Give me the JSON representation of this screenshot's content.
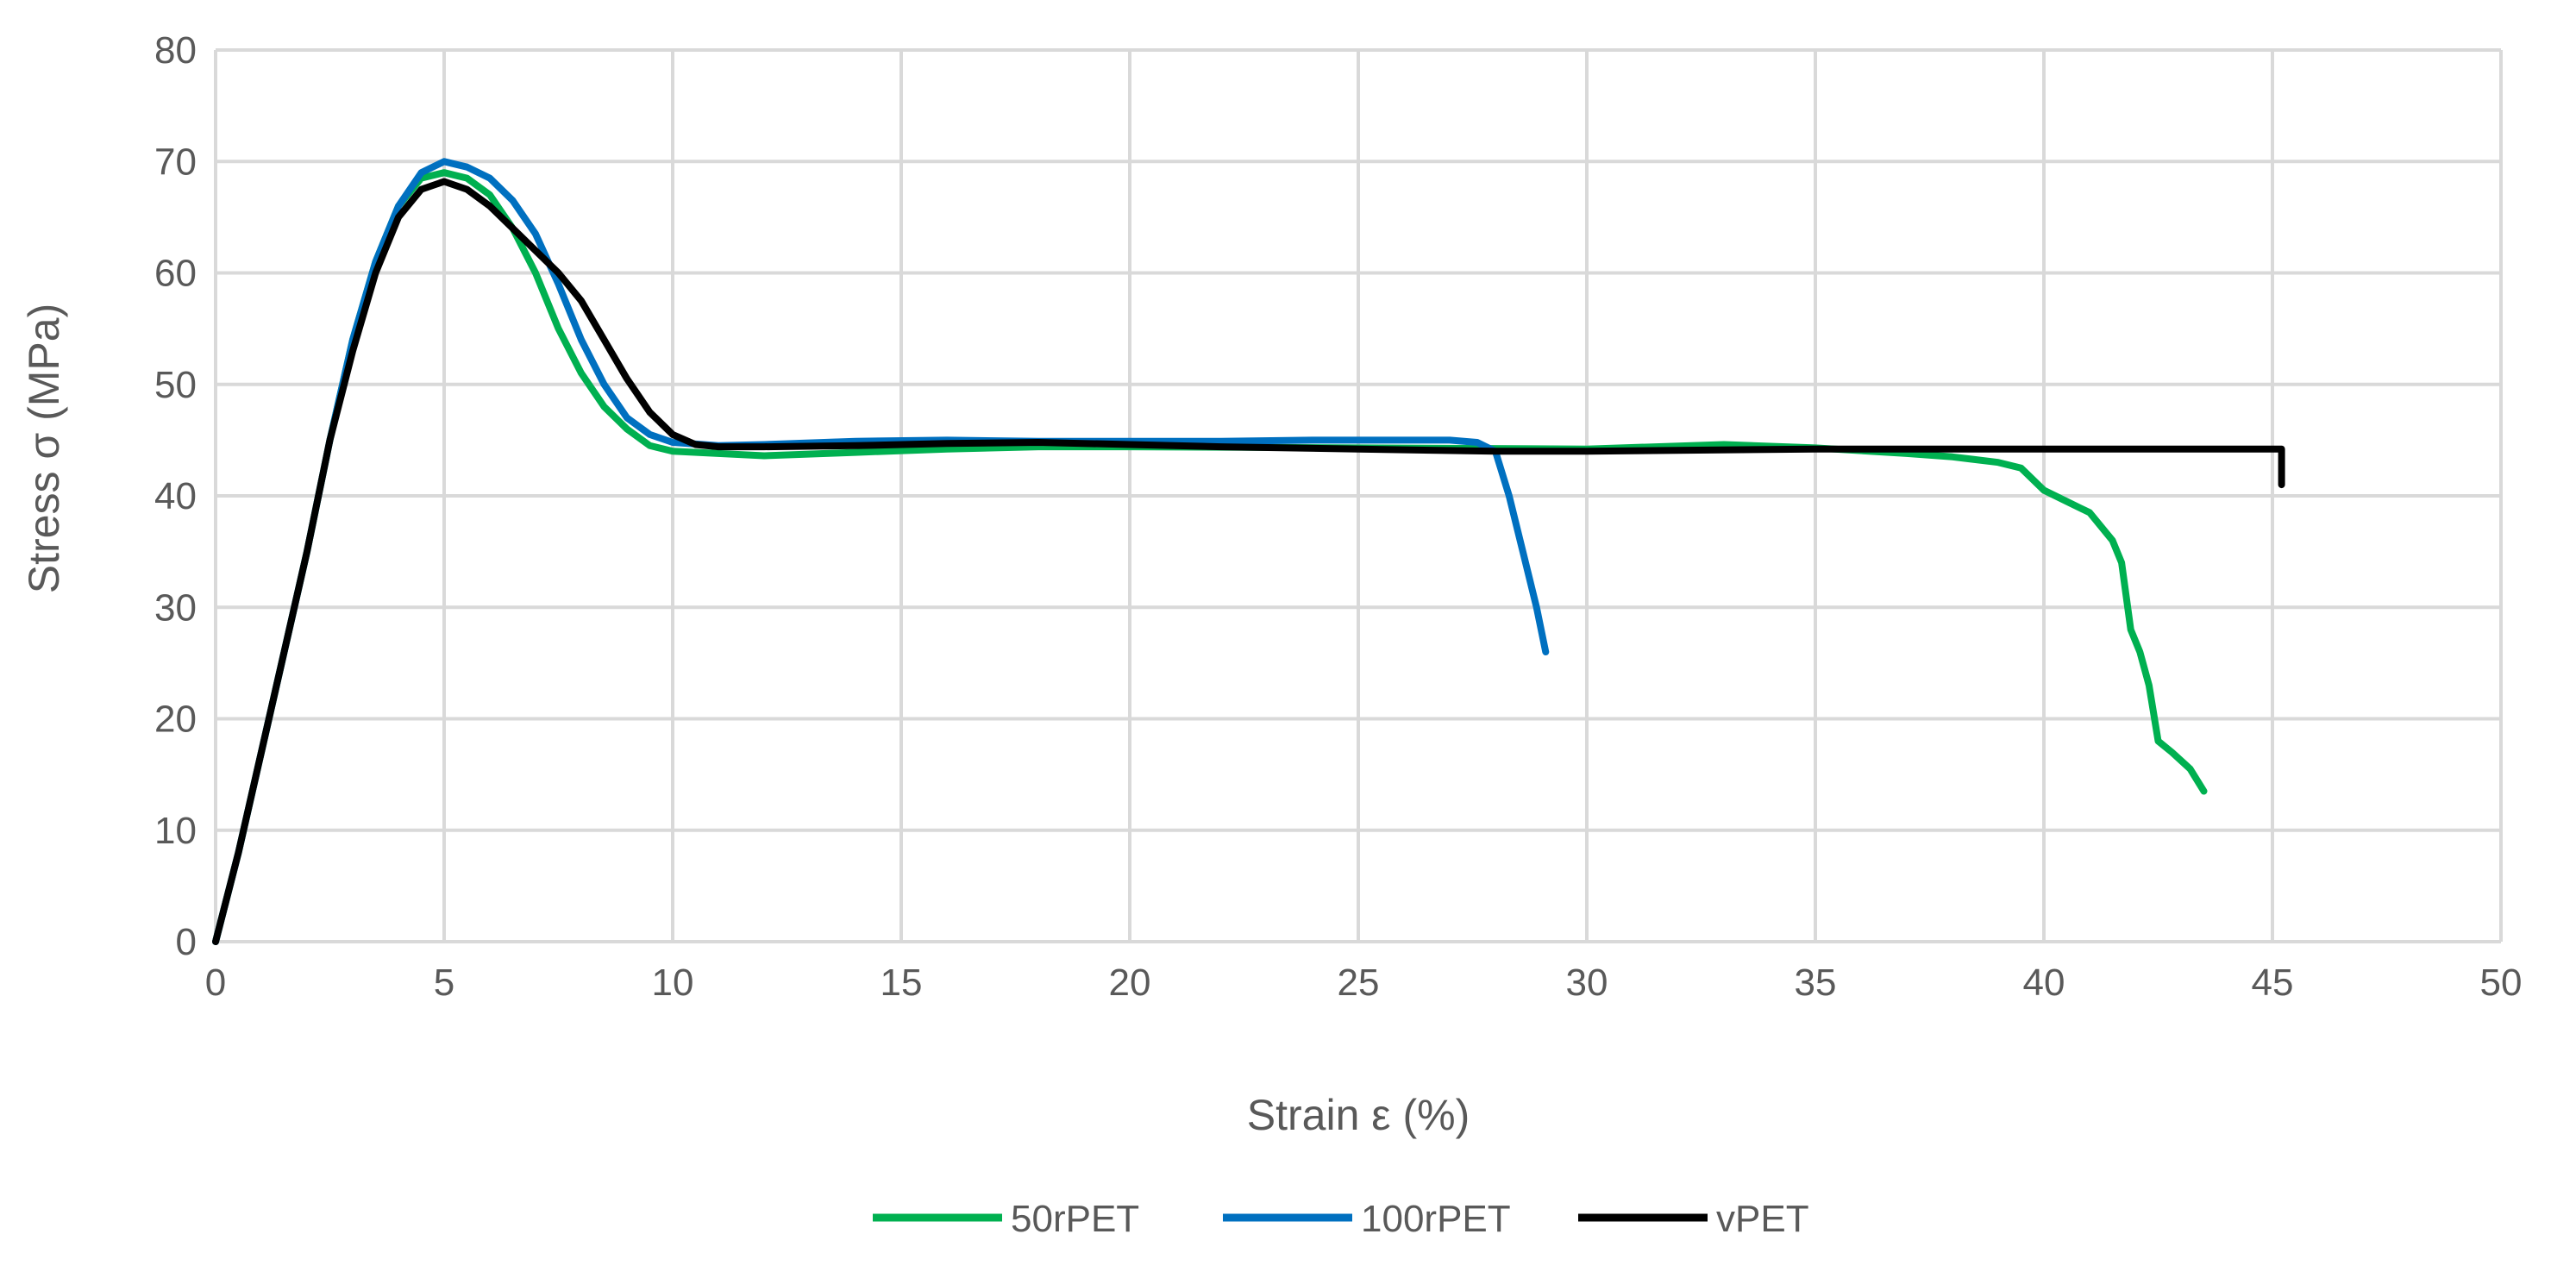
{
  "chart_data": {
    "type": "line",
    "title": "",
    "xlabel": "Strain ε (%)",
    "ylabel": "Stress σ (MPa)",
    "xlim": [
      0,
      50
    ],
    "ylim": [
      0,
      80
    ],
    "x_ticks": [
      0,
      5,
      10,
      15,
      20,
      25,
      30,
      35,
      40,
      45,
      50
    ],
    "y_ticks": [
      0,
      10,
      20,
      30,
      40,
      50,
      60,
      70,
      80
    ],
    "grid": "on",
    "legend_position": "bottom",
    "series": [
      {
        "name": "50rPET",
        "color": "#00b050",
        "points": [
          [
            0,
            0
          ],
          [
            0.5,
            8
          ],
          [
            1,
            17
          ],
          [
            1.5,
            26
          ],
          [
            2,
            35
          ],
          [
            2.5,
            45
          ],
          [
            3,
            54
          ],
          [
            3.5,
            61
          ],
          [
            4,
            66
          ],
          [
            4.5,
            68.5
          ],
          [
            5,
            69
          ],
          [
            5.5,
            68.5
          ],
          [
            6,
            67
          ],
          [
            6.5,
            64
          ],
          [
            7,
            60
          ],
          [
            7.5,
            55
          ],
          [
            8,
            51
          ],
          [
            8.5,
            48
          ],
          [
            9,
            46
          ],
          [
            9.5,
            44.5
          ],
          [
            10,
            44
          ],
          [
            11,
            43.8
          ],
          [
            12,
            43.6
          ],
          [
            14,
            43.9
          ],
          [
            16,
            44.2
          ],
          [
            18,
            44.4
          ],
          [
            20,
            44.4
          ],
          [
            25,
            44.3
          ],
          [
            30,
            44.2
          ],
          [
            33,
            44.6
          ],
          [
            35,
            44.3
          ],
          [
            37,
            43.8
          ],
          [
            38,
            43.5
          ],
          [
            39,
            43
          ],
          [
            39.5,
            42.5
          ],
          [
            40,
            40.5
          ],
          [
            40.5,
            39.5
          ],
          [
            41,
            38.5
          ],
          [
            41.5,
            36
          ],
          [
            41.7,
            34
          ],
          [
            41.9,
            28
          ],
          [
            42.1,
            26
          ],
          [
            42.3,
            23
          ],
          [
            42.5,
            18
          ],
          [
            42.8,
            17
          ],
          [
            43.2,
            15.5
          ],
          [
            43.5,
            13.5
          ]
        ]
      },
      {
        "name": "100rPET",
        "color": "#0070c0",
        "points": [
          [
            0,
            0
          ],
          [
            0.5,
            8
          ],
          [
            1,
            17
          ],
          [
            1.5,
            26
          ],
          [
            2,
            35
          ],
          [
            2.5,
            45
          ],
          [
            3,
            54
          ],
          [
            3.5,
            61
          ],
          [
            4,
            66
          ],
          [
            4.5,
            69
          ],
          [
            5,
            70
          ],
          [
            5.5,
            69.5
          ],
          [
            6,
            68.5
          ],
          [
            6.5,
            66.5
          ],
          [
            7,
            63.5
          ],
          [
            7.5,
            59
          ],
          [
            8,
            54
          ],
          [
            8.5,
            50
          ],
          [
            9,
            47
          ],
          [
            9.5,
            45.5
          ],
          [
            10,
            44.8
          ],
          [
            11,
            44.5
          ],
          [
            12,
            44.6
          ],
          [
            14,
            44.9
          ],
          [
            16,
            45
          ],
          [
            18,
            44.9
          ],
          [
            20,
            44.9
          ],
          [
            22,
            44.9
          ],
          [
            24,
            45
          ],
          [
            26,
            45
          ],
          [
            27,
            45
          ],
          [
            27.6,
            44.8
          ],
          [
            28,
            44
          ],
          [
            28.3,
            40
          ],
          [
            28.6,
            35
          ],
          [
            28.9,
            30
          ],
          [
            29.1,
            26
          ]
        ]
      },
      {
        "name": "vPET",
        "color": "#000000",
        "points": [
          [
            0,
            0
          ],
          [
            0.5,
            8
          ],
          [
            1,
            17
          ],
          [
            1.5,
            26
          ],
          [
            2,
            35
          ],
          [
            2.5,
            45
          ],
          [
            3,
            53
          ],
          [
            3.5,
            60
          ],
          [
            4,
            65
          ],
          [
            4.5,
            67.5
          ],
          [
            5,
            68.2
          ],
          [
            5.5,
            67.5
          ],
          [
            6,
            66
          ],
          [
            6.5,
            64
          ],
          [
            7,
            62
          ],
          [
            7.5,
            60
          ],
          [
            8,
            57.5
          ],
          [
            8.5,
            54
          ],
          [
            9,
            50.5
          ],
          [
            9.5,
            47.5
          ],
          [
            10,
            45.5
          ],
          [
            10.5,
            44.6
          ],
          [
            11,
            44.4
          ],
          [
            12,
            44.4
          ],
          [
            14,
            44.5
          ],
          [
            16,
            44.7
          ],
          [
            18,
            44.8
          ],
          [
            20,
            44.6
          ],
          [
            22,
            44.4
          ],
          [
            25,
            44.2
          ],
          [
            28,
            44
          ],
          [
            30,
            44
          ],
          [
            35,
            44.2
          ],
          [
            40,
            44.2
          ],
          [
            43,
            44.2
          ],
          [
            45.2,
            44.2
          ],
          [
            45.2,
            41
          ]
        ]
      }
    ]
  }
}
